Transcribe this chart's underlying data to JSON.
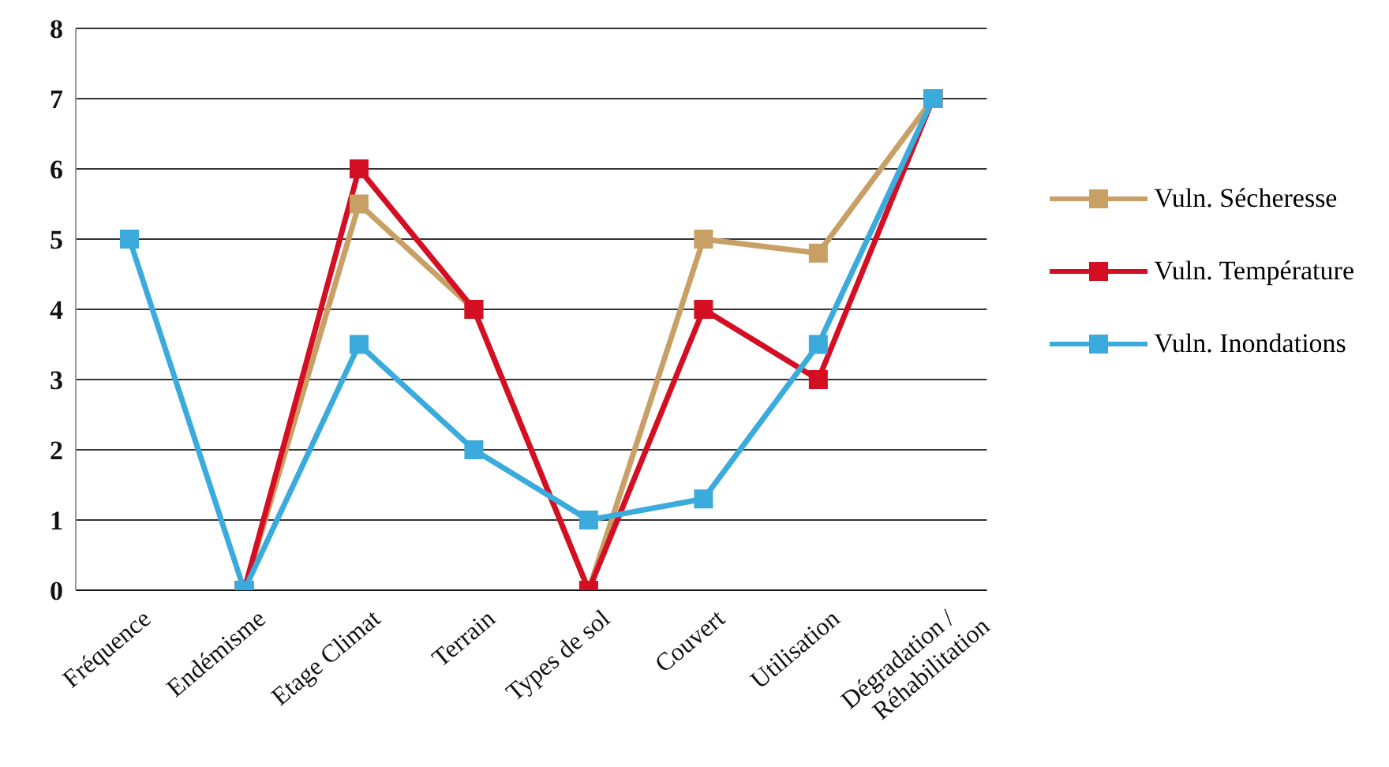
{
  "chart_data": {
    "type": "line",
    "categories": [
      "Fréquence",
      "Endémisme",
      "Etage Climat",
      "Terrain",
      "Types de sol",
      "Couvert",
      "Utilisation",
      "Dégradation / Réhabilitation"
    ],
    "series": [
      {
        "name": "Vuln. Sécheresse",
        "color": "#c89f64",
        "values": [
          null,
          0,
          5.5,
          4,
          0,
          5,
          4.8,
          7
        ]
      },
      {
        "name": "Vuln. Température",
        "color": "#d40e23",
        "values": [
          null,
          0,
          6,
          4,
          0,
          4,
          3,
          7
        ]
      },
      {
        "name": "Vuln. Inondations",
        "color": "#3aabdc",
        "values": [
          5,
          0,
          3.5,
          2,
          1,
          1.3,
          3.5,
          7
        ]
      }
    ],
    "ylim": [
      0,
      8
    ],
    "yticks": [
      0,
      1,
      2,
      3,
      4,
      5,
      6,
      7,
      8
    ],
    "grid": "y",
    "legend": "right",
    "marker": "square",
    "line_style": "solid"
  }
}
